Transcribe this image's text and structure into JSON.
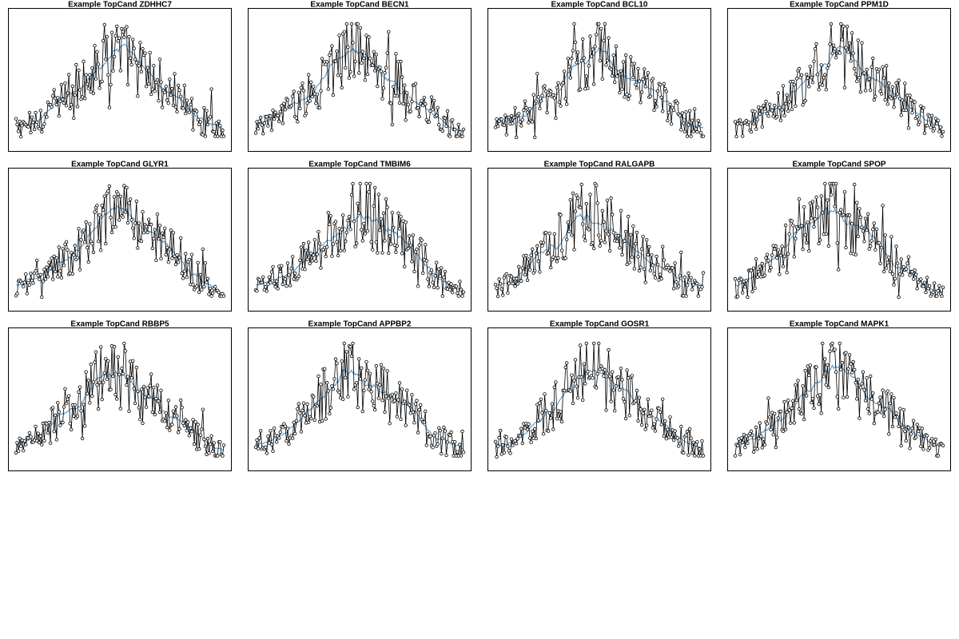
{
  "chart_data": [
    {
      "type": "line",
      "title": "Example TopCand ZDHHC7",
      "grid": false,
      "series": [
        {
          "values": []
        }
      ]
    },
    {
      "type": "line",
      "title": "Example TopCand BECN1",
      "grid": false,
      "series": [
        {
          "values": []
        }
      ]
    },
    {
      "type": "line",
      "title": "Example TopCand BCL10",
      "grid": false,
      "series": [
        {
          "values": []
        }
      ]
    },
    {
      "type": "line",
      "title": "Example TopCand PPM1D",
      "grid": false,
      "series": [
        {
          "values": []
        }
      ]
    },
    {
      "type": "line",
      "title": "Example TopCand GLYR1",
      "grid": false,
      "series": [
        {
          "values": []
        }
      ]
    },
    {
      "type": "line",
      "title": "Example TopCand TMBIM6",
      "grid": false,
      "series": [
        {
          "values": []
        }
      ]
    },
    {
      "type": "line",
      "title": "Example TopCand RALGAPB",
      "grid": false,
      "series": [
        {
          "values": []
        }
      ]
    },
    {
      "type": "line",
      "title": "Example TopCand SPOP",
      "grid": false,
      "series": [
        {
          "values": []
        }
      ]
    },
    {
      "type": "line",
      "title": "Example TopCand RBBP5",
      "grid": false,
      "series": [
        {
          "values": []
        }
      ]
    },
    {
      "type": "line",
      "title": "Example TopCand APPBP2",
      "grid": false,
      "series": [
        {
          "values": []
        }
      ]
    },
    {
      "type": "line",
      "title": "Example TopCand GOSR1",
      "grid": false,
      "series": [
        {
          "values": []
        }
      ]
    },
    {
      "type": "line",
      "title": "Example TopCand MAPK1",
      "grid": false,
      "series": [
        {
          "values": []
        }
      ]
    }
  ],
  "colors": {
    "points": "#000000",
    "trend": "#4a90c8",
    "frame": "#000000"
  }
}
